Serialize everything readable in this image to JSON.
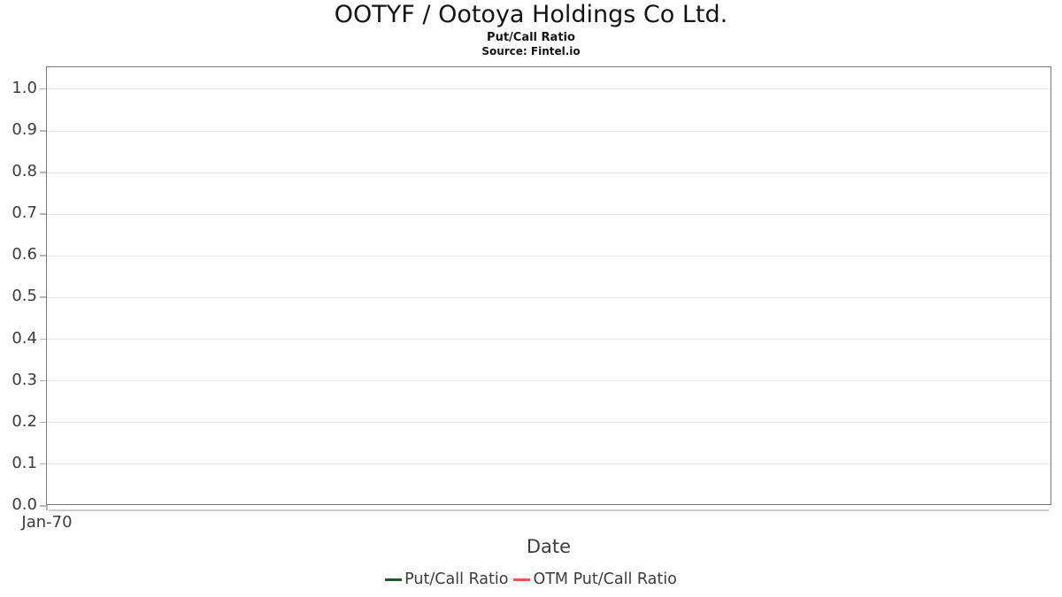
{
  "chart_data": {
    "type": "line",
    "title": "OOTYF / Ootoya Holdings Co Ltd.",
    "subtitle": "Put/Call Ratio",
    "source": "Source: Fintel.io",
    "xlabel": "Date",
    "ylabel": "",
    "x_tick_labels": [
      "Jan-70"
    ],
    "y_ticks": [
      0.0,
      0.1,
      0.2,
      0.3,
      0.4,
      0.5,
      0.6,
      0.7,
      0.8,
      0.9,
      1.0
    ],
    "ylim": [
      0,
      1.053
    ],
    "grid": true,
    "legend_position": "bottom-center",
    "series": [
      {
        "name": "Put/Call Ratio",
        "color": "#245a33",
        "x": [],
        "values": []
      },
      {
        "name": "OTM Put/Call Ratio",
        "color": "#f4564d",
        "x": [],
        "values": []
      }
    ]
  },
  "colors": {
    "plot_border": "#767676",
    "gridline": "#e6e6e6",
    "tick_mark": "#b6b6b6",
    "secondary_spine": "#cccccc",
    "tick_text": "#3c3c3c",
    "title_text": "#141414"
  }
}
